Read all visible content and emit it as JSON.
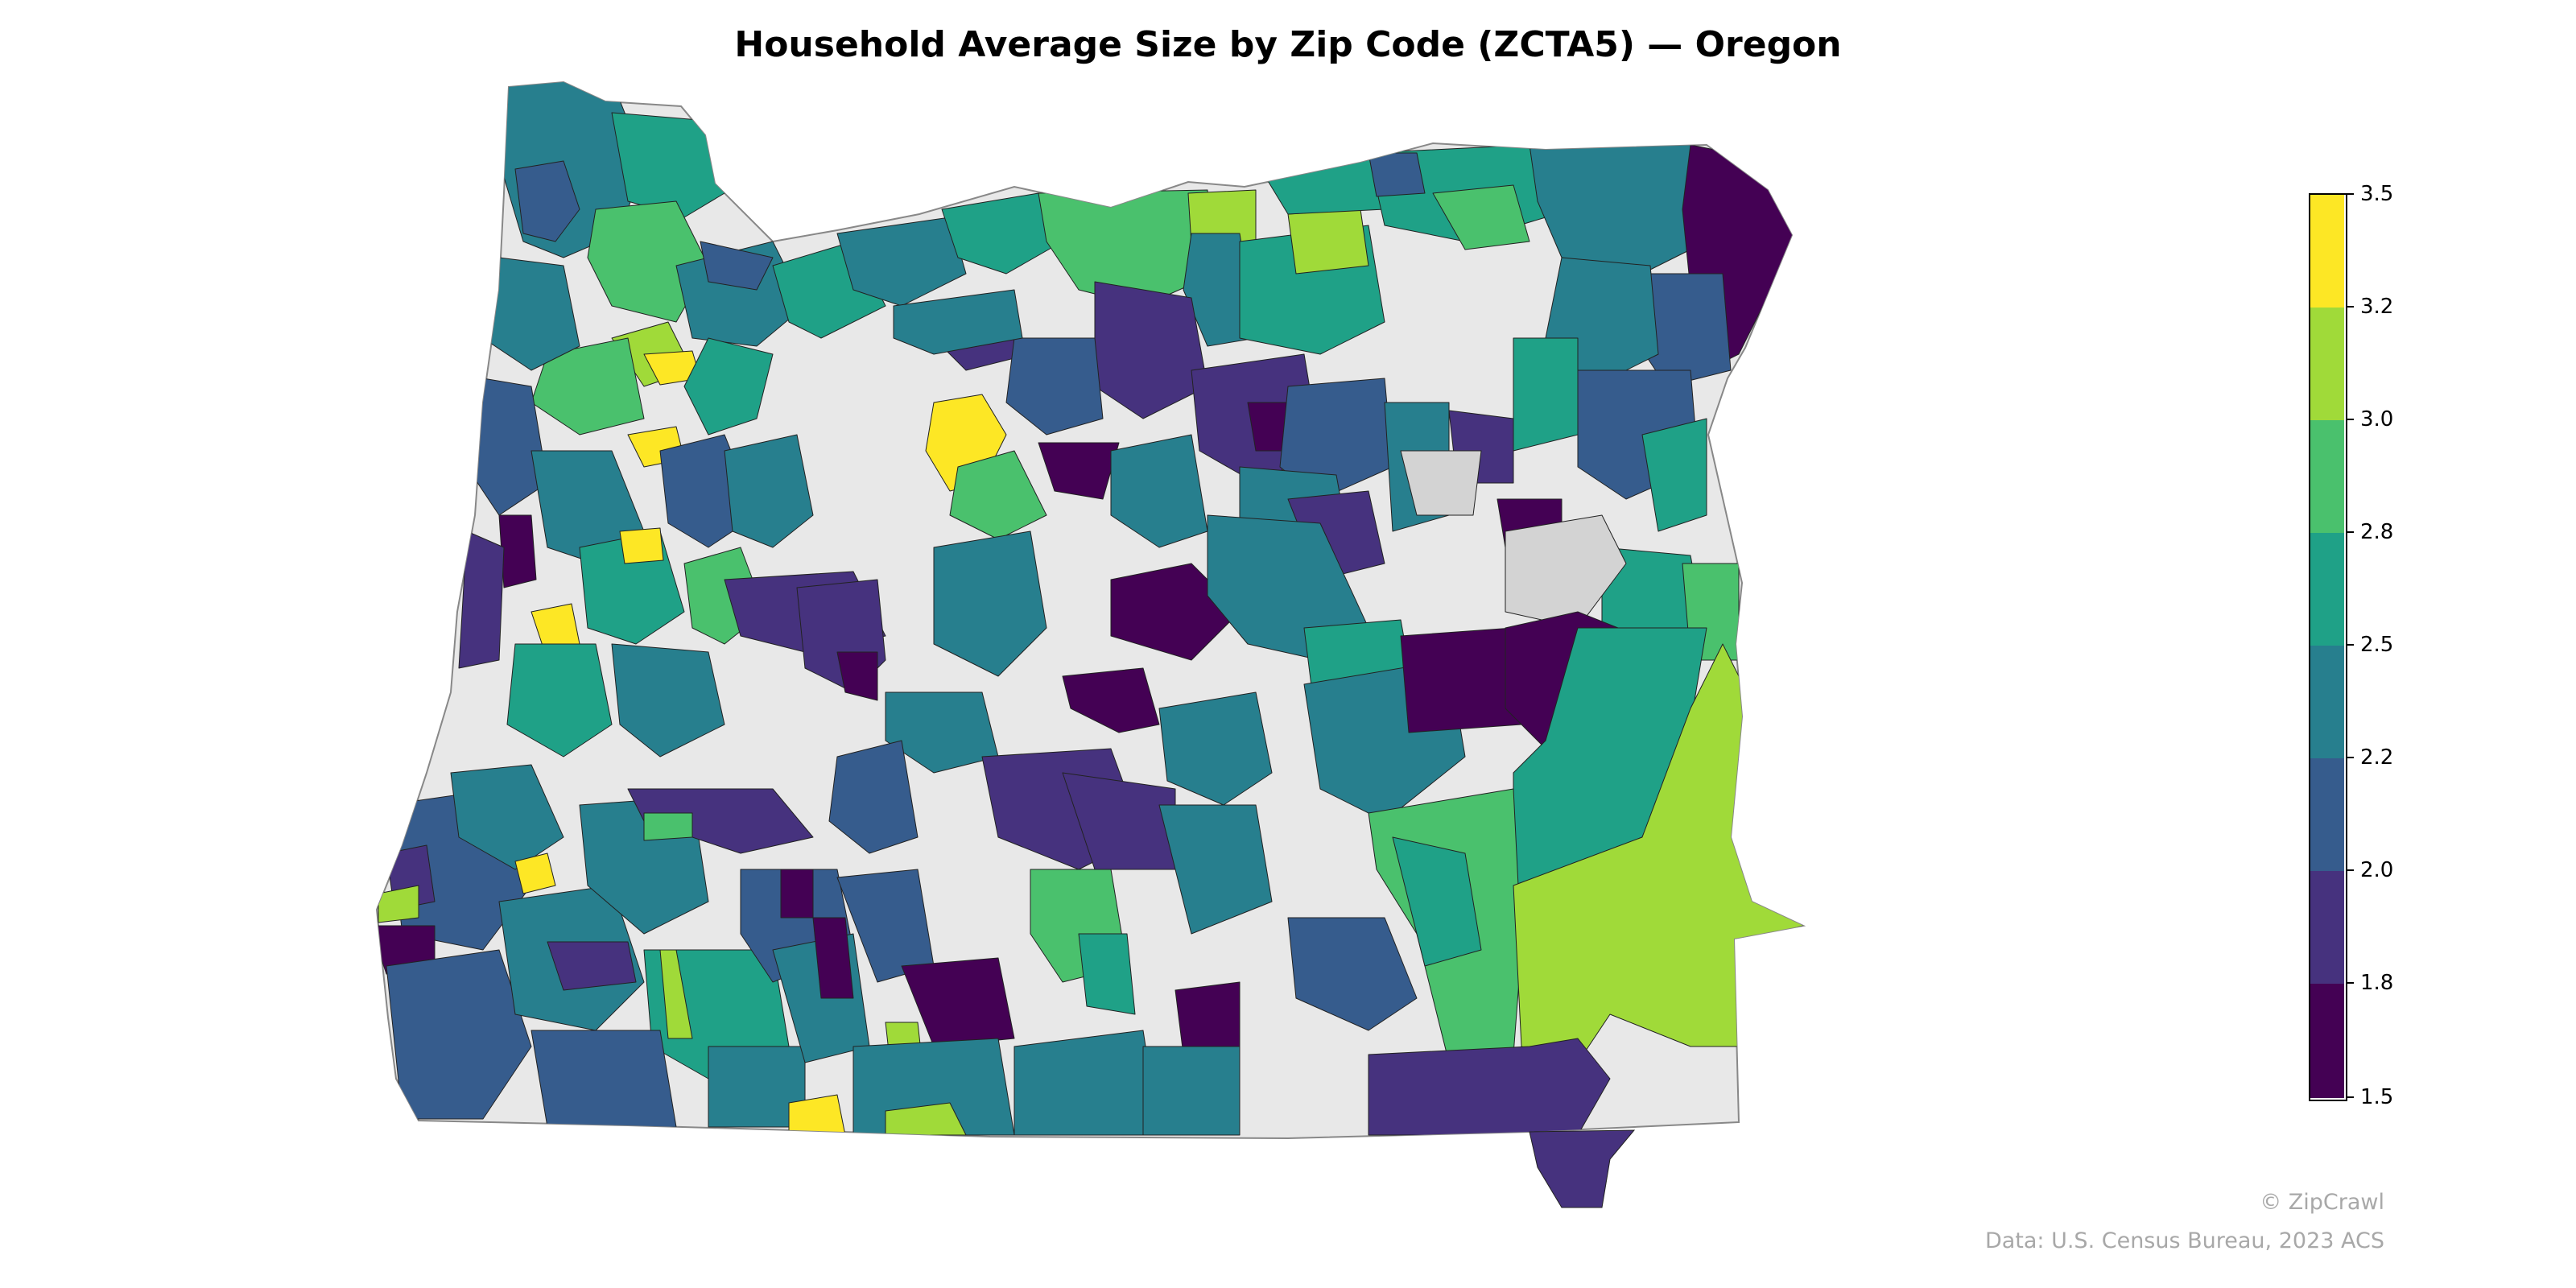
{
  "map": {
    "title": "Household Average Size by Zip Code (ZCTA5) — Oregon",
    "state": "Oregon",
    "geography": "ZCTA5",
    "measure": "Household Average Size",
    "no_data_color": "#e8e8e8",
    "border_color": "#222222"
  },
  "colorbar": {
    "bins": [
      {
        "from": 1.5,
        "to": 1.8,
        "color": "#440154"
      },
      {
        "from": 1.8,
        "to": 2.0,
        "color": "#46327e"
      },
      {
        "from": 2.0,
        "to": 2.2,
        "color": "#365c8d"
      },
      {
        "from": 2.2,
        "to": 2.5,
        "color": "#277f8e"
      },
      {
        "from": 2.5,
        "to": 2.8,
        "color": "#1fa187"
      },
      {
        "from": 2.8,
        "to": 3.0,
        "color": "#4ac16d"
      },
      {
        "from": 3.0,
        "to": 3.2,
        "color": "#a0da39"
      },
      {
        "from": 3.2,
        "to": 3.5,
        "color": "#fde725"
      }
    ],
    "tick_labels": [
      "3.5",
      "3.2",
      "3.0",
      "2.8",
      "2.5",
      "2.2",
      "2.0",
      "1.8",
      "1.5"
    ]
  },
  "credits": {
    "copyright": "© ZipCrawl",
    "source": "Data: U.S. Census Bureau, 2023 ACS"
  }
}
